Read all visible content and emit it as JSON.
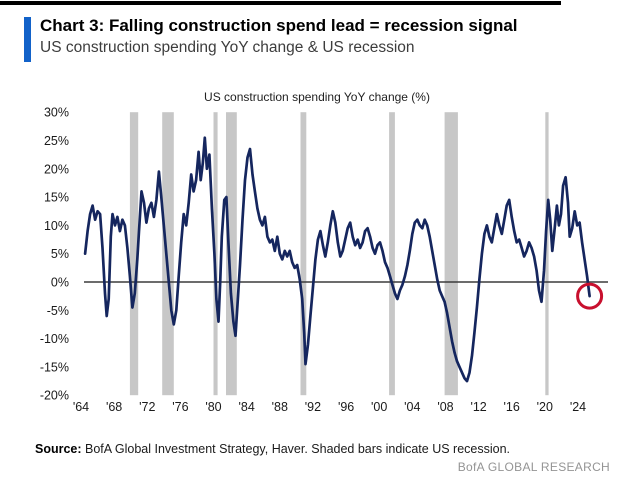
{
  "header": {
    "accent_color": "#1262c9",
    "title": "Chart 3: Falling construction spend lead = recession signal",
    "subtitle": "US construction spending YoY change & US recession"
  },
  "chart_data": {
    "type": "line",
    "title": "US construction spending YoY change (%)",
    "xlabel": "",
    "ylabel": "",
    "ylim": [
      -20,
      30
    ],
    "xlim": [
      1964,
      2025.6
    ],
    "grid": false,
    "legend_position": "none",
    "zero_line": true,
    "line_color": "#15265e",
    "recession_color": "#c7c7c7",
    "axis_color": "#3c3c3c",
    "y_tick_labels": [
      "30%",
      "25%",
      "20%",
      "15%",
      "10%",
      "5%",
      "0%",
      "-5%",
      "-10%",
      "-15%",
      "-20%"
    ],
    "y_tick_values": [
      30,
      25,
      20,
      15,
      10,
      5,
      0,
      -5,
      -10,
      -15,
      -20
    ],
    "x_tick_labels": [
      "'64",
      "'68",
      "'72",
      "'76",
      "'80",
      "'84",
      "'88",
      "'92",
      "'96",
      "'00",
      "'04",
      "'08",
      "'12",
      "'16",
      "'20",
      "'24"
    ],
    "x_tick_years": [
      1964,
      1968,
      1972,
      1976,
      1980,
      1984,
      1988,
      1992,
      1996,
      2000,
      2004,
      2008,
      2012,
      2016,
      2020,
      2024
    ],
    "recessions": [
      [
        1969.9,
        1970.9
      ],
      [
        1973.8,
        1975.2
      ],
      [
        1980.0,
        1980.5
      ],
      [
        1981.5,
        1982.8
      ],
      [
        1990.5,
        1991.2
      ],
      [
        2001.2,
        2001.9
      ],
      [
        2007.9,
        2009.5
      ],
      [
        2020.05,
        2020.45
      ]
    ],
    "series": [
      {
        "name": "US construction spending YoY change (%)",
        "x": [
          1964.5,
          1964.8,
          1965.1,
          1965.4,
          1965.7,
          1966.0,
          1966.3,
          1966.6,
          1966.9,
          1967.1,
          1967.35,
          1967.6,
          1967.8,
          1968.1,
          1968.4,
          1968.7,
          1969.0,
          1969.3,
          1969.6,
          1969.9,
          1970.2,
          1970.5,
          1970.8,
          1971.0,
          1971.3,
          1971.6,
          1971.9,
          1972.2,
          1972.5,
          1972.8,
          1973.1,
          1973.4,
          1973.7,
          1974.0,
          1974.3,
          1974.6,
          1974.9,
          1975.2,
          1975.5,
          1975.8,
          1976.1,
          1976.4,
          1976.7,
          1977.0,
          1977.3,
          1977.6,
          1977.9,
          1978.2,
          1978.45,
          1978.7,
          1978.95,
          1979.2,
          1979.5,
          1979.8,
          1980.1,
          1980.35,
          1980.6,
          1980.8,
          1981.0,
          1981.3,
          1981.55,
          1981.8,
          1982.1,
          1982.4,
          1982.65,
          1982.9,
          1983.2,
          1983.5,
          1983.8,
          1984.1,
          1984.4,
          1984.7,
          1985.0,
          1985.3,
          1985.6,
          1985.9,
          1986.2,
          1986.5,
          1986.8,
          1987.1,
          1987.4,
          1987.7,
          1988.0,
          1988.3,
          1988.6,
          1988.9,
          1989.2,
          1989.5,
          1989.8,
          1990.1,
          1990.4,
          1990.7,
          1990.95,
          1991.1,
          1991.4,
          1991.7,
          1992.0,
          1992.3,
          1992.6,
          1992.9,
          1993.2,
          1993.5,
          1993.8,
          1994.1,
          1994.4,
          1994.7,
          1995.0,
          1995.3,
          1995.6,
          1995.9,
          1996.2,
          1996.5,
          1996.8,
          1997.1,
          1997.4,
          1997.7,
          1998.0,
          1998.3,
          1998.6,
          1998.9,
          1999.2,
          1999.5,
          1999.8,
          2000.1,
          2000.4,
          2000.7,
          2001.0,
          2001.3,
          2001.6,
          2001.9,
          2002.2,
          2002.5,
          2002.8,
          2003.1,
          2003.4,
          2003.7,
          2004.0,
          2004.3,
          2004.6,
          2004.9,
          2005.2,
          2005.5,
          2005.8,
          2006.1,
          2006.4,
          2006.7,
          2007.0,
          2007.3,
          2007.6,
          2007.9,
          2008.2,
          2008.5,
          2008.8,
          2009.1,
          2009.4,
          2009.7,
          2010.0,
          2010.3,
          2010.6,
          2010.9,
          2011.2,
          2011.5,
          2011.8,
          2012.1,
          2012.4,
          2012.7,
          2013.0,
          2013.3,
          2013.6,
          2013.9,
          2014.2,
          2014.5,
          2014.8,
          2015.1,
          2015.4,
          2015.7,
          2016.0,
          2016.3,
          2016.6,
          2016.9,
          2017.2,
          2017.5,
          2017.8,
          2018.1,
          2018.4,
          2018.7,
          2019.0,
          2019.3,
          2019.6,
          2019.9,
          2020.15,
          2020.4,
          2020.65,
          2020.9,
          2021.15,
          2021.45,
          2021.7,
          2021.95,
          2022.2,
          2022.5,
          2022.8,
          2023.0,
          2023.3,
          2023.6,
          2023.9,
          2024.2,
          2024.5,
          2024.8,
          2025.1,
          2025.4
        ],
        "values": [
          5,
          9,
          12,
          13.5,
          11,
          12.5,
          12,
          6,
          -2,
          -6,
          -3,
          8,
          12,
          10,
          11.5,
          9,
          11,
          10,
          6,
          1,
          -4.5,
          -2,
          4,
          9,
          16,
          14,
          10.5,
          13,
          14,
          11.5,
          14.5,
          19.5,
          15,
          10,
          5,
          0,
          -5,
          -7.5,
          -5,
          1,
          7,
          12,
          10,
          14,
          19,
          16,
          18,
          23,
          18,
          21,
          25.5,
          20,
          22.5,
          13,
          5,
          -3,
          -7,
          0,
          8,
          14.5,
          15,
          7,
          -2,
          -7,
          -9.5,
          -4,
          3,
          11,
          18,
          22,
          23.5,
          19,
          16,
          13,
          11,
          10,
          11.5,
          8,
          7,
          7.5,
          5.5,
          8,
          5,
          4,
          5.5,
          4.5,
          5.5,
          3.5,
          2.5,
          3,
          0.5,
          -3,
          -9,
          -14.5,
          -11,
          -6,
          -1,
          4,
          7.5,
          9,
          6.5,
          4.5,
          7,
          10,
          12.5,
          10.5,
          7,
          4.5,
          5.5,
          7.5,
          9.5,
          10.5,
          8,
          6.5,
          7.5,
          6,
          7,
          9,
          9.5,
          8,
          6,
          5,
          6.5,
          7,
          5.5,
          3.5,
          2.5,
          1,
          -0.5,
          -2,
          -3,
          -1.5,
          -0.5,
          1,
          3,
          5.5,
          8.5,
          10.5,
          11,
          10,
          9.5,
          11,
          10,
          8,
          5.5,
          3,
          0.5,
          -1.5,
          -2.5,
          -3.5,
          -5.5,
          -8,
          -10.5,
          -12.5,
          -14,
          -15,
          -16,
          -17,
          -17.5,
          -16,
          -13,
          -9,
          -4.5,
          0.5,
          5,
          8.5,
          10,
          8,
          7,
          9.5,
          12,
          10,
          8.5,
          11,
          13.5,
          14.5,
          11.5,
          9,
          7,
          7.5,
          6,
          4.5,
          5.5,
          7,
          6,
          4.5,
          2,
          -1.5,
          -3.5,
          2,
          9,
          14.5,
          11,
          5.5,
          9,
          13.5,
          10,
          12,
          17,
          18.5,
          14,
          8,
          9.5,
          12.5,
          10,
          10.5,
          7,
          4,
          1,
          -2.5
        ]
      }
    ],
    "highlight": {
      "x": 2025.4,
      "value": -2.5,
      "circle_color": "#c8102e"
    }
  },
  "footer": {
    "source_label": "Source:",
    "source_text": " BofA Global Investment Strategy, Haver. Shaded bars indicate US recession.",
    "brand": "BofA GLOBAL RESEARCH"
  }
}
